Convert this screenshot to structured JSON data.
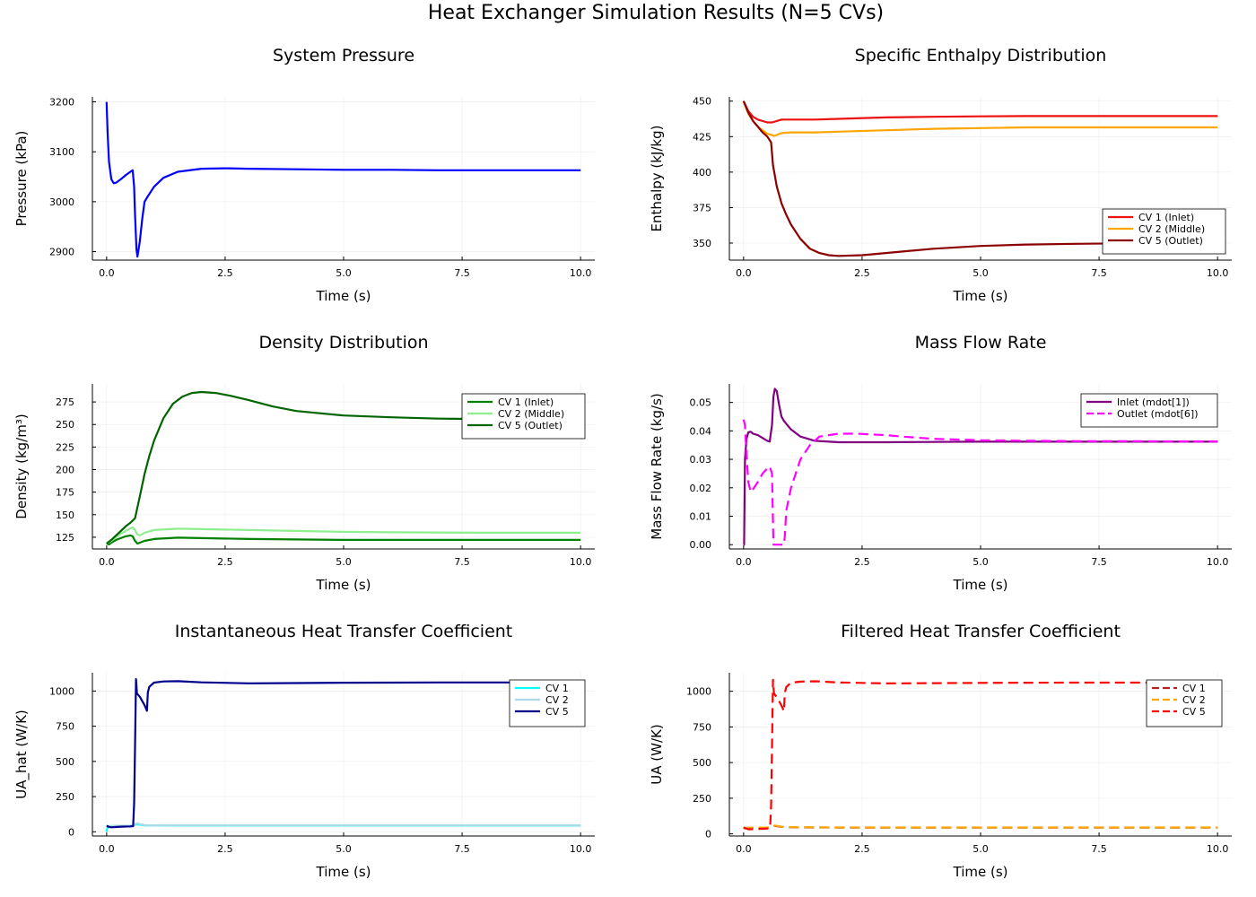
{
  "figure": {
    "title": "Heat Exchanger Simulation Results (N=5 CVs)"
  },
  "chart_data": [
    {
      "type": "line",
      "title": "System Pressure",
      "xlabel": "Time (s)",
      "ylabel": "Pressure (kPa)",
      "xlim": [
        -0.3,
        10.3
      ],
      "ylim": [
        2883,
        3210
      ],
      "xticks": [
        0,
        2.5,
        5,
        7.5,
        10
      ],
      "xtick_labels": [
        "0.0",
        "2.5",
        "5.0",
        "7.5",
        "10.0"
      ],
      "yticks": [
        2900,
        3000,
        3100,
        3200
      ],
      "ytick_labels": [
        "2900",
        "3000",
        "3100",
        "3200"
      ],
      "grid": true,
      "legend": "none",
      "series": [
        {
          "color": "#0000ff",
          "dash": "solid",
          "x": [
            0,
            0.02,
            0.05,
            0.1,
            0.15,
            0.2,
            0.3,
            0.4,
            0.5,
            0.55,
            0.58,
            0.6,
            0.63,
            0.65,
            0.7,
            0.75,
            0.8,
            0.85,
            1.0,
            1.2,
            1.5,
            2.0,
            2.5,
            3.0,
            4.0,
            5.0,
            6.0,
            7.0,
            8.0,
            9.0,
            10.0
          ],
          "y": [
            3200,
            3140,
            3080,
            3045,
            3037,
            3038,
            3045,
            3053,
            3060,
            3063,
            3030,
            2975,
            2905,
            2890,
            2920,
            2965,
            3000,
            3008,
            3030,
            3048,
            3060,
            3066,
            3067,
            3066,
            3065,
            3064,
            3064,
            3063,
            3063,
            3063,
            3063
          ]
        }
      ]
    },
    {
      "type": "line",
      "title": "Specific Enthalpy Distribution",
      "xlabel": "Time (s)",
      "ylabel": "Enthalpy (kJ/kg)",
      "xlim": [
        -0.3,
        10.3
      ],
      "ylim": [
        338,
        453
      ],
      "xticks": [
        0,
        2.5,
        5,
        7.5,
        10
      ],
      "xtick_labels": [
        "0.0",
        "2.5",
        "5.0",
        "7.5",
        "10.0"
      ],
      "yticks": [
        350,
        375,
        400,
        425,
        450
      ],
      "ytick_labels": [
        "350",
        "375",
        "400",
        "425",
        "450"
      ],
      "grid": true,
      "legend": "bottom-right",
      "series": [
        {
          "name": "CV 1 (Inlet)",
          "color": "#ee1111",
          "dash": "solid",
          "x": [
            0,
            0.1,
            0.2,
            0.3,
            0.5,
            0.6,
            0.7,
            0.8,
            1.0,
            1.5,
            2.0,
            3.0,
            4.0,
            5.0,
            6.0,
            8.0,
            10.0
          ],
          "y": [
            450,
            443,
            439,
            437,
            435,
            435,
            436,
            437,
            437,
            437,
            437.5,
            438.5,
            439,
            439.3,
            439.5,
            439.5,
            439.5
          ]
        },
        {
          "name": "CV 2 (Middle)",
          "color": "#ffa500",
          "dash": "solid",
          "x": [
            0,
            0.1,
            0.2,
            0.3,
            0.5,
            0.6,
            0.65,
            0.8,
            1.0,
            1.5,
            2.0,
            3.0,
            4.0,
            5.0,
            6.0,
            8.0,
            10.0
          ],
          "y": [
            450,
            441,
            436,
            432,
            427,
            426,
            425.5,
            427.5,
            428,
            428,
            428.5,
            429.5,
            430.5,
            431,
            431.5,
            431.5,
            431.5
          ]
        },
        {
          "name": "CV 5 (Outlet)",
          "color": "#8b0000",
          "dash": "solid",
          "x": [
            0,
            0.1,
            0.2,
            0.3,
            0.4,
            0.5,
            0.58,
            0.62,
            0.7,
            0.8,
            0.9,
            1.0,
            1.2,
            1.4,
            1.6,
            1.8,
            2.0,
            2.5,
            3.0,
            4.0,
            5.0,
            6.0,
            7.0,
            8.0,
            9.0,
            10.0
          ],
          "y": [
            450,
            442,
            436,
            432,
            428,
            425,
            421,
            405,
            390,
            378,
            370,
            363,
            353,
            346,
            343,
            341.5,
            341,
            341.5,
            343,
            346,
            348,
            349,
            349.5,
            349.8,
            350,
            350
          ]
        }
      ]
    },
    {
      "type": "line",
      "title": "Density Distribution",
      "xlabel": "Time (s)",
      "ylabel": "Density (kg/m³)",
      "xlim": [
        -0.3,
        10.3
      ],
      "ylim": [
        112,
        295
      ],
      "xticks": [
        0,
        2.5,
        5,
        7.5,
        10
      ],
      "xtick_labels": [
        "0.0",
        "2.5",
        "5.0",
        "7.5",
        "10.0"
      ],
      "yticks": [
        125,
        150,
        175,
        200,
        225,
        250,
        275
      ],
      "ytick_labels": [
        "125",
        "150",
        "175",
        "200",
        "225",
        "250",
        "275"
      ],
      "grid": true,
      "legend": "top-right",
      "series": [
        {
          "name": "CV 1 (Inlet)",
          "color": "#008000",
          "dash": "solid",
          "x": [
            0,
            0.05,
            0.1,
            0.2,
            0.3,
            0.4,
            0.5,
            0.55,
            0.6,
            0.65,
            0.7,
            0.8,
            1.0,
            1.5,
            2.0,
            3.0,
            4.0,
            5.0,
            6.0,
            8.0,
            10.0
          ],
          "y": [
            118,
            117,
            119,
            122,
            124,
            126,
            127,
            126,
            121,
            118,
            119,
            121,
            123,
            124.5,
            124,
            123,
            122.5,
            122,
            122,
            122,
            122
          ]
        },
        {
          "name": "CV 2 (Middle)",
          "color": "#90ee90",
          "dash": "solid",
          "x": [
            0,
            0.1,
            0.2,
            0.3,
            0.4,
            0.5,
            0.55,
            0.6,
            0.65,
            0.7,
            0.8,
            1.0,
            1.5,
            2.0,
            3.0,
            4.0,
            5.0,
            6.0,
            8.0,
            10.0
          ],
          "y": [
            118,
            121,
            125,
            129,
            132,
            135,
            136,
            133,
            128,
            127,
            130,
            133,
            134.5,
            134,
            133,
            132,
            131,
            130.5,
            130,
            130
          ]
        },
        {
          "name": "CV 5 (Outlet)",
          "color": "#006400",
          "dash": "solid",
          "x": [
            0,
            0.1,
            0.2,
            0.3,
            0.4,
            0.5,
            0.6,
            0.7,
            0.8,
            0.9,
            1.0,
            1.2,
            1.4,
            1.6,
            1.8,
            2.0,
            2.3,
            2.6,
            3.0,
            3.5,
            4.0,
            5.0,
            6.0,
            7.0,
            8.0,
            9.0,
            10.0
          ],
          "y": [
            118,
            122,
            127,
            132,
            137,
            141,
            146,
            170,
            195,
            215,
            232,
            257,
            273,
            281,
            285,
            286,
            285,
            282,
            277,
            270,
            265,
            260,
            258,
            256.5,
            256,
            255.5,
            255.5
          ]
        }
      ]
    },
    {
      "type": "line",
      "title": "Mass Flow Rate",
      "xlabel": "Time (s)",
      "ylabel": "Mass Flow Rate (kg/s)",
      "xlim": [
        -0.3,
        10.3
      ],
      "ylim": [
        -0.0015,
        0.0565
      ],
      "xticks": [
        0,
        2.5,
        5,
        7.5,
        10
      ],
      "xtick_labels": [
        "0.0",
        "2.5",
        "5.0",
        "7.5",
        "10.0"
      ],
      "yticks": [
        0,
        0.01,
        0.02,
        0.03,
        0.04,
        0.05
      ],
      "ytick_labels": [
        "0.00",
        "0.01",
        "0.02",
        "0.03",
        "0.04",
        "0.05"
      ],
      "grid": true,
      "legend": "top-right",
      "series": [
        {
          "name": "Inlet (mdot[1])",
          "color": "#800080",
          "dash": "solid",
          "x": [
            0,
            0.01,
            0.03,
            0.06,
            0.1,
            0.15,
            0.2,
            0.3,
            0.4,
            0.5,
            0.55,
            0.6,
            0.63,
            0.66,
            0.7,
            0.75,
            0.8,
            0.85,
            0.9,
            1.0,
            1.2,
            1.5,
            2.0,
            3.0,
            4.0,
            5.0,
            6.0,
            8.0,
            10.0
          ],
          "y": [
            0,
            0.0,
            0.03,
            0.037,
            0.0395,
            0.0397,
            0.039,
            0.0385,
            0.0375,
            0.0365,
            0.0362,
            0.042,
            0.052,
            0.0548,
            0.054,
            0.049,
            0.045,
            0.0435,
            0.0425,
            0.0405,
            0.038,
            0.0365,
            0.036,
            0.036,
            0.0361,
            0.0362,
            0.0362,
            0.0362,
            0.0362
          ]
        },
        {
          "name": "Outlet (mdot[6])",
          "color": "#ff00ff",
          "dash": "dashed",
          "x": [
            0,
            0.03,
            0.06,
            0.1,
            0.15,
            0.2,
            0.3,
            0.4,
            0.5,
            0.55,
            0.6,
            0.63,
            0.7,
            0.8,
            0.85,
            0.87,
            0.9,
            1.0,
            1.2,
            1.4,
            1.6,
            2.0,
            2.4,
            3.0,
            3.5,
            4.0,
            5.0,
            6.0,
            7.0,
            8.0,
            9.0,
            10.0
          ],
          "y": [
            0.044,
            0.042,
            0.032,
            0.022,
            0.0185,
            0.0195,
            0.022,
            0.025,
            0.0268,
            0.0275,
            0.025,
            0.0,
            0.0,
            0.0,
            0.0,
            0.003,
            0.012,
            0.02,
            0.03,
            0.035,
            0.038,
            0.039,
            0.039,
            0.0385,
            0.0378,
            0.0372,
            0.0367,
            0.0365,
            0.0364,
            0.0364,
            0.0363,
            0.0363
          ]
        }
      ]
    },
    {
      "type": "line",
      "title": "Instantaneous Heat Transfer Coefficient",
      "xlabel": "Time (s)",
      "ylabel": "UA_hat (W/K)",
      "xlim": [
        -0.3,
        10.3
      ],
      "ylim": [
        -30,
        1130
      ],
      "xticks": [
        0,
        2.5,
        5,
        7.5,
        10
      ],
      "xtick_labels": [
        "0.0",
        "2.5",
        "5.0",
        "7.5",
        "10.0"
      ],
      "yticks": [
        0,
        250,
        500,
        750,
        1000
      ],
      "ytick_labels": [
        "0",
        "250",
        "500",
        "750",
        "1000"
      ],
      "grid": true,
      "legend": "top-right",
      "series": [
        {
          "name": "CV 1",
          "color": "#00ffff",
          "dash": "solid",
          "x": [
            0,
            0.01,
            0.03,
            0.06,
            0.1,
            0.3,
            0.5,
            0.58,
            0.62,
            0.7,
            0.8,
            1.0,
            1.5,
            2.0,
            3.0,
            5.0,
            7.5,
            10.0
          ],
          "y": [
            0,
            20,
            35,
            38,
            40,
            41,
            42,
            45,
            55,
            50,
            46,
            45,
            44,
            44,
            44,
            44,
            44,
            44
          ]
        },
        {
          "name": "CV 2",
          "color": "#add8e6",
          "dash": "solid",
          "x": [
            0,
            0.05,
            0.1,
            0.3,
            0.5,
            0.58,
            0.62,
            0.66,
            0.7,
            0.8,
            1.0,
            1.5,
            2.0,
            3.0,
            5.0,
            7.5,
            10.0
          ],
          "y": [
            40,
            41,
            42,
            43,
            44,
            47,
            58,
            60,
            54,
            48,
            46,
            45,
            45,
            45,
            45,
            45,
            45
          ]
        },
        {
          "name": "CV 5",
          "color": "#00008b",
          "dash": "solid",
          "x": [
            0,
            0.05,
            0.1,
            0.3,
            0.5,
            0.56,
            0.58,
            0.6,
            0.62,
            0.64,
            0.66,
            0.7,
            0.8,
            0.85,
            0.87,
            0.9,
            1.0,
            1.2,
            1.5,
            2.0,
            3.0,
            4.0,
            5.0,
            6.0,
            7.0,
            8.0,
            9.0,
            10.0
          ],
          "y": [
            42,
            35,
            32,
            36,
            38,
            40,
            200,
            600,
            1085,
            980,
            975,
            960,
            900,
            860,
            990,
            1030,
            1060,
            1068,
            1070,
            1062,
            1055,
            1057,
            1059,
            1060,
            1061,
            1061,
            1061,
            1061
          ]
        }
      ]
    },
    {
      "type": "line",
      "title": "Filtered Heat Transfer Coefficient",
      "xlabel": "Time (s)",
      "ylabel": "UA (W/K)",
      "xlim": [
        -0.3,
        10.3
      ],
      "ylim": [
        -15,
        1130
      ],
      "xticks": [
        0,
        2.5,
        5,
        7.5,
        10
      ],
      "xtick_labels": [
        "0.0",
        "2.5",
        "5.0",
        "7.5",
        "10.0"
      ],
      "yticks": [
        0,
        250,
        500,
        750,
        1000
      ],
      "ytick_labels": [
        "0",
        "250",
        "500",
        "750",
        "1000"
      ],
      "grid": true,
      "legend": "top-right",
      "series": [
        {
          "name": "CV 1",
          "color": "#b22222",
          "dash": "dashed",
          "x": [
            0,
            0.1,
            0.3,
            0.5,
            0.6,
            0.65,
            0.7,
            0.8,
            1.0,
            1.5,
            2.0,
            3.0,
            5.0,
            7.5,
            10.0
          ],
          "y": [
            40,
            42,
            42,
            43,
            48,
            56,
            54,
            49,
            46,
            45,
            44,
            44,
            44,
            44,
            44
          ]
        },
        {
          "name": "CV 2",
          "color": "#ffa500",
          "dash": "dashed",
          "x": [
            0,
            0.1,
            0.3,
            0.5,
            0.6,
            0.65,
            0.7,
            0.8,
            1.0,
            1.5,
            2.0,
            3.0,
            5.0,
            7.5,
            10.0
          ],
          "y": [
            42,
            43,
            44,
            45,
            50,
            58,
            56,
            50,
            47,
            46,
            45,
            45,
            45,
            45,
            45
          ]
        },
        {
          "name": "CV 5",
          "color": "#ff0000",
          "dash": "dashed",
          "x": [
            0,
            0.05,
            0.1,
            0.3,
            0.5,
            0.56,
            0.58,
            0.6,
            0.62,
            0.64,
            0.66,
            0.7,
            0.8,
            0.85,
            0.87,
            0.9,
            1.0,
            1.2,
            1.5,
            2.0,
            3.0,
            4.0,
            5.0,
            6.0,
            7.0,
            8.0,
            9.0,
            10.0
          ],
          "y": [
            45,
            38,
            32,
            34,
            38,
            40,
            200,
            600,
            1080,
            985,
            975,
            960,
            900,
            860,
            990,
            1030,
            1060,
            1068,
            1070,
            1062,
            1055,
            1057,
            1059,
            1060,
            1061,
            1061,
            1061,
            1061
          ]
        }
      ]
    }
  ]
}
